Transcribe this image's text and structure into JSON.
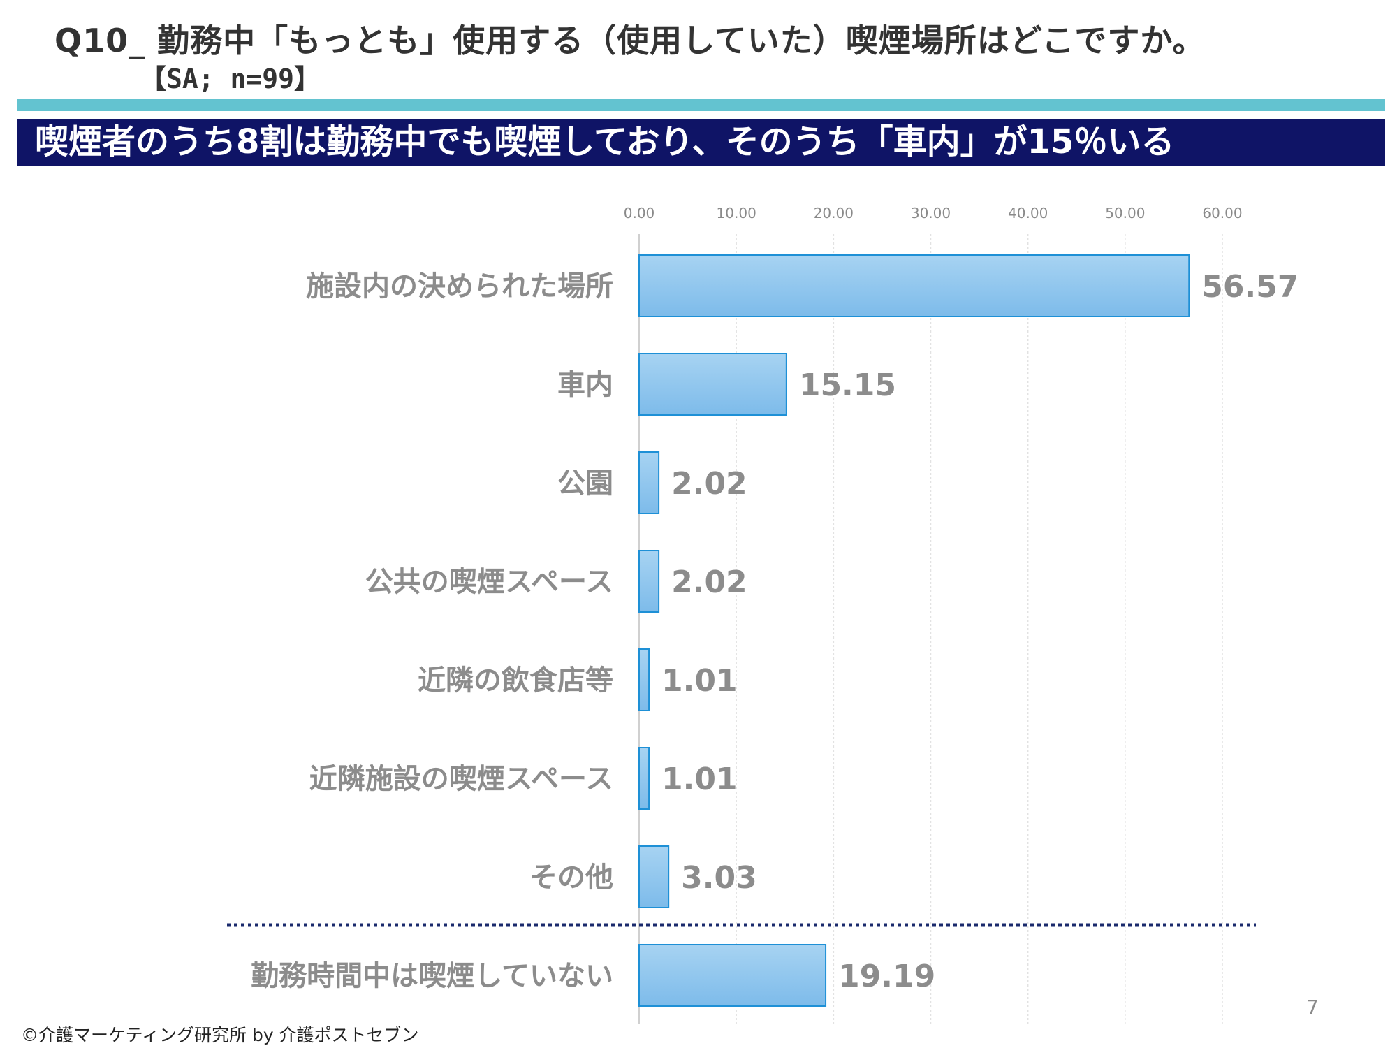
{
  "header": {
    "question": "Q10_ 勤務中「もっとも」使用する（使用していた）喫煙場所はどこですか。",
    "sample": "【SA; n=99】",
    "headline": "喫煙者のうち8割は勤務中でも喫煙しており、そのうち「車内」が15％いる"
  },
  "footer": {
    "copyright": "©介護マーケティング研究所 by 介護ポストセブン",
    "page_number": "7"
  },
  "colors": {
    "teal_rule": "#63c3d0",
    "banner_bg": "#0f1466",
    "bar_fill_top": "#a7d3f2",
    "bar_fill_bottom": "#7dbbea",
    "bar_stroke": "#1e90d6",
    "separator": "#1a2a6c"
  },
  "chart_data": {
    "type": "bar",
    "orientation": "horizontal",
    "categories": [
      "施設内の決められた場所",
      "車内",
      "公園",
      "公共の喫煙スペース",
      "近隣の飲食店等",
      "近隣施設の喫煙スペース",
      "その他",
      "勤務時間中は喫煙していない"
    ],
    "values": [
      56.57,
      15.15,
      2.02,
      2.02,
      1.01,
      1.01,
      3.03,
      19.19
    ],
    "value_labels": [
      "56.57",
      "15.15",
      "2.02",
      "2.02",
      "1.01",
      "1.01",
      "3.03",
      "19.19"
    ],
    "xlim": [
      0,
      60
    ],
    "xticks": [
      0,
      10,
      20,
      30,
      40,
      50,
      60
    ],
    "xtick_labels": [
      "0.00",
      "10.00",
      "20.00",
      "30.00",
      "40.00",
      "50.00",
      "60.00"
    ],
    "axis_position": "top",
    "grid": true,
    "separator_before_last": true,
    "title": "",
    "xlabel": "",
    "ylabel": ""
  }
}
